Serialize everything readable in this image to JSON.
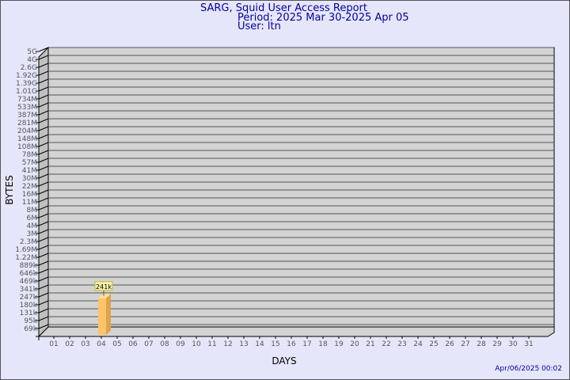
{
  "header": {
    "title": "SARG, Squid User Access Report",
    "period": "Period: 2025 Mar 30-2025 Apr 05",
    "user": "User: ltn"
  },
  "footer": {
    "timestamp": "Apr/06/2025 00:02"
  },
  "chart_data": {
    "type": "bar",
    "title": "SARG, Squid User Access Report",
    "xlabel": "DAYS",
    "ylabel": "BYTES",
    "grid": true,
    "style": "3d",
    "colors": {
      "bar": "#ffc46a",
      "bar_side": "#dda24c",
      "bar_top": "#ffe09a",
      "plot_bg": "#d3d3d3",
      "wall": "#c0c0c0",
      "label_box": "#f8f4a8"
    },
    "y_ticks": [
      "5G",
      "4G",
      "2.6G",
      "1.92G",
      "1.39G",
      "1.01G",
      "734M",
      "533M",
      "387M",
      "281M",
      "204M",
      "148M",
      "108M",
      "78M",
      "57M",
      "41M",
      "30M",
      "22M",
      "16M",
      "11M",
      "8M",
      "6M",
      "4M",
      "3M",
      "2.3M",
      "1.69M",
      "1.22M",
      "889k",
      "646k",
      "469k",
      "341k",
      "247k",
      "180k",
      "131k",
      "95k",
      "69k"
    ],
    "categories": [
      "01",
      "02",
      "03",
      "04",
      "05",
      "06",
      "07",
      "08",
      "09",
      "10",
      "11",
      "12",
      "13",
      "14",
      "15",
      "16",
      "17",
      "18",
      "19",
      "20",
      "21",
      "22",
      "23",
      "24",
      "25",
      "26",
      "27",
      "28",
      "29",
      "30",
      "31"
    ],
    "bars": [
      {
        "category": "04",
        "value": 241000,
        "label": "241k"
      }
    ]
  }
}
